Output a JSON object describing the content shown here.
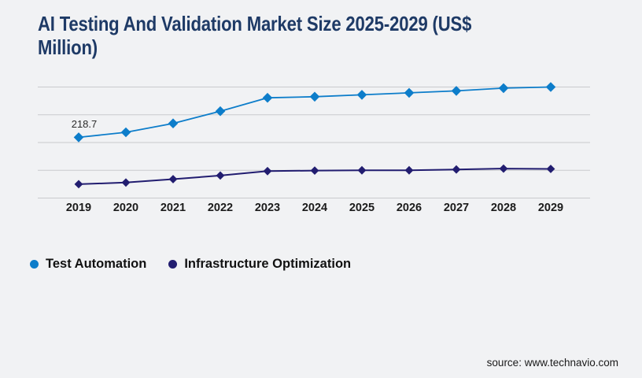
{
  "header": {
    "title_line1": "AI Testing And Validation Market Size 2025-2029 (US$",
    "title_line2": "Million)"
  },
  "theme": {
    "background": "#f1f2f4",
    "title_color": "#1e3a66",
    "axis_text_color": "#1b1b1b",
    "gridline_color": "#c9cacd",
    "point_label_color": "#2b2b2b"
  },
  "chart_data": {
    "type": "line",
    "title": "AI Testing And Validation Market Size 2025-2029 (US$ Million)",
    "categories": [
      "2019",
      "2020",
      "2021",
      "2022",
      "2023",
      "2024",
      "2025",
      "2026",
      "2027",
      "2028",
      "2029"
    ],
    "series": [
      {
        "name": "Test Automation",
        "color": "#0d7dca",
        "marker": "diamond",
        "values": [
          218.7,
          237,
          269,
          313,
          361,
          365,
          372,
          379,
          386,
          396,
          400
        ]
      },
      {
        "name": "Infrastructure Optimization",
        "color": "#221d70",
        "marker": "diamond",
        "values": [
          50,
          56,
          68,
          81,
          97,
          99,
          100,
          100,
          103,
          106,
          105
        ]
      }
    ],
    "ylim": [
      0,
      400
    ],
    "gridline_count": 5,
    "grid": true,
    "xlabel": "",
    "ylabel": "",
    "legend_position": "bottom-left",
    "point_labels": [
      {
        "series": 0,
        "index": 0,
        "text": "218.7"
      }
    ]
  },
  "footer": {
    "source_label": "source: www.technavio.com"
  }
}
